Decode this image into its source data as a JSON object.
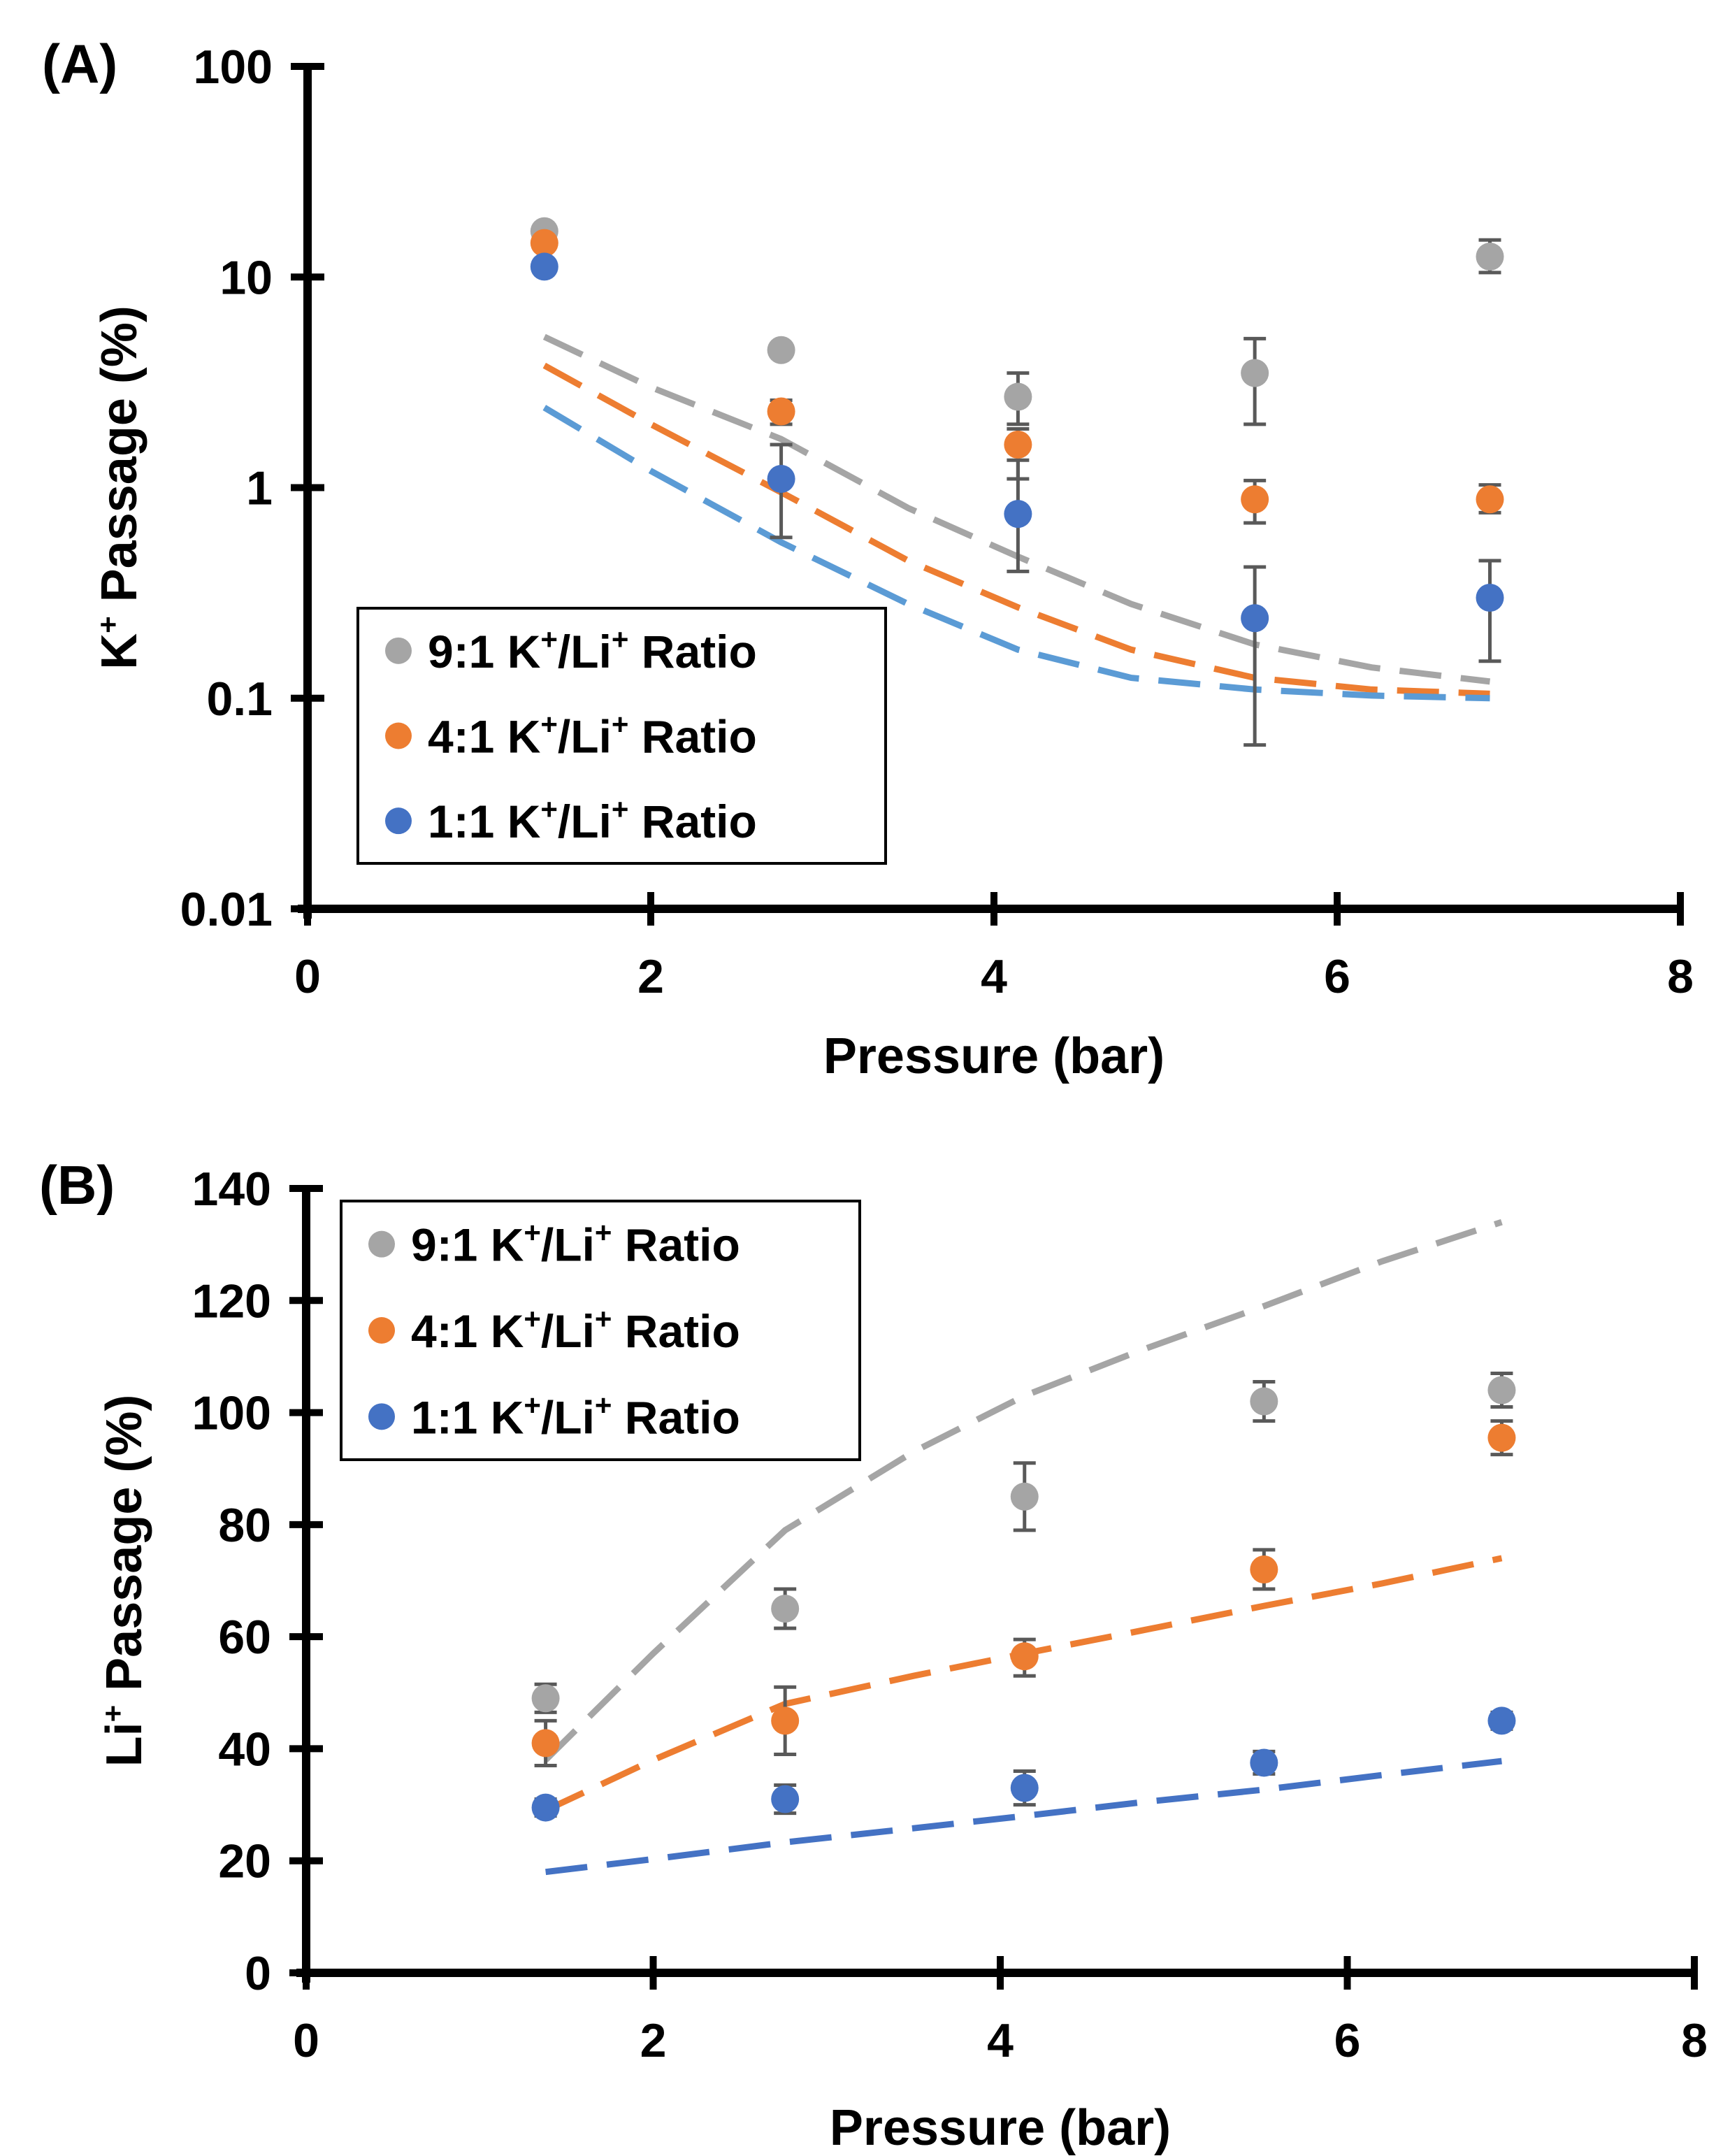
{
  "figure": {
    "background": "#ffffff"
  },
  "colors": {
    "gray": "#a5a5a5",
    "orange": "#ed7d31",
    "blue": "#4472c4",
    "light_blue": "#5b9bd5",
    "error_bar": "#595959",
    "axis": "#000000"
  },
  "chart_data": [
    {
      "id": "A",
      "panel_label": "(A)",
      "type": "scatter",
      "xlabel": "Pressure (bar)",
      "ylabel": {
        "main": "K",
        "sup": "+",
        "rest": " Passage (%)"
      },
      "xscale": "linear",
      "yscale": "log",
      "xlim": [
        0,
        8
      ],
      "ylim": [
        0.01,
        100
      ],
      "x_ticks": [
        0,
        2,
        4,
        6,
        8
      ],
      "x_tick_labels": [
        "0",
        "2",
        "4",
        "6",
        "8"
      ],
      "y_ticks": [
        0.01,
        0.1,
        1,
        10,
        100
      ],
      "y_tick_labels": [
        "0.01",
        "0.1",
        "1",
        "10",
        "100"
      ],
      "grid": false,
      "legend_position": "bottom-left",
      "series": [
        {
          "name": "9:1 K⁺/Li⁺ Ratio",
          "label": {
            "a": "9:1 K",
            "b": "/Li",
            "c": " Ratio"
          },
          "color": "#a5a5a5",
          "x": [
            1.38,
            2.76,
            4.14,
            5.52,
            6.89
          ],
          "y": [
            16.5,
            4.5,
            2.7,
            3.5,
            12.5
          ],
          "err_low": [
            0,
            0,
            0.7,
            1.5,
            2.0
          ],
          "err_high": [
            0,
            0,
            0.8,
            1.6,
            2.5
          ],
          "fit": {
            "x": [
              1.38,
              2.0,
              2.76,
              3.5,
              4.14,
              4.8,
              5.52,
              6.2,
              6.89
            ],
            "y": [
              5.2,
              3.0,
              1.7,
              0.8,
              0.47,
              0.28,
              0.18,
              0.14,
              0.12
            ],
            "color": "#a5a5a5"
          }
        },
        {
          "name": "4:1 K⁺/Li⁺ Ratio",
          "label": {
            "a": "4:1 K",
            "b": "/Li",
            "c": " Ratio"
          },
          "color": "#ed7d31",
          "x": [
            1.38,
            2.76,
            4.14,
            5.52,
            6.89
          ],
          "y": [
            14.5,
            2.3,
            1.6,
            0.88,
            0.88
          ],
          "err_low": [
            0,
            0.3,
            0.5,
            0.2,
            0.12
          ],
          "err_high": [
            0,
            0.3,
            0.3,
            0.2,
            0.15
          ],
          "fit": {
            "x": [
              1.38,
              2.0,
              2.76,
              3.5,
              4.14,
              4.8,
              5.52,
              6.2,
              6.89
            ],
            "y": [
              3.8,
              2.0,
              0.95,
              0.45,
              0.27,
              0.17,
              0.125,
              0.11,
              0.105
            ],
            "color": "#ed7d31"
          }
        },
        {
          "name": "1:1 K⁺/Li⁺ Ratio",
          "label": {
            "a": "1:1 K",
            "b": "/Li",
            "c": " Ratio"
          },
          "color": "#4472c4",
          "x": [
            1.38,
            2.76,
            4.14,
            5.52,
            6.89
          ],
          "y": [
            11.2,
            1.1,
            0.75,
            0.24,
            0.3
          ],
          "err_low": [
            0,
            0.52,
            0.35,
            0.18,
            0.15
          ],
          "err_high": [
            0,
            0.5,
            0.6,
            0.18,
            0.15
          ],
          "fit": {
            "x": [
              1.38,
              2.0,
              2.76,
              3.5,
              4.14,
              4.8,
              5.52,
              6.2,
              6.89
            ],
            "y": [
              2.4,
              1.2,
              0.55,
              0.28,
              0.17,
              0.125,
              0.11,
              0.103,
              0.1
            ],
            "color": "#5b9bd5"
          }
        }
      ]
    },
    {
      "id": "B",
      "panel_label": "(B)",
      "type": "scatter",
      "xlabel": "Pressure (bar)",
      "ylabel": {
        "main": "Li",
        "sup": "+",
        "rest": " Passage (%)"
      },
      "xscale": "linear",
      "yscale": "linear",
      "xlim": [
        0,
        8
      ],
      "ylim": [
        0,
        140
      ],
      "x_ticks": [
        0,
        2,
        4,
        6,
        8
      ],
      "x_tick_labels": [
        "0",
        "2",
        "4",
        "6",
        "8"
      ],
      "y_ticks": [
        0,
        20,
        40,
        60,
        80,
        100,
        120,
        140
      ],
      "y_tick_labels": [
        "0",
        "20",
        "40",
        "60",
        "80",
        "100",
        "120",
        "140"
      ],
      "grid": false,
      "legend_position": "top-left",
      "series": [
        {
          "name": "9:1 K⁺/Li⁺ Ratio",
          "label": {
            "a": "9:1 K",
            "b": "/Li",
            "c": " Ratio"
          },
          "color": "#a5a5a5",
          "x": [
            1.38,
            2.76,
            4.14,
            5.52,
            6.89
          ],
          "y": [
            49,
            65,
            85,
            102,
            104
          ],
          "err_low": [
            2.5,
            3.5,
            6.0,
            3.5,
            3.0
          ],
          "err_high": [
            2.5,
            3.5,
            6.0,
            3.5,
            3.0
          ],
          "fit": {
            "x": [
              1.38,
              2.0,
              2.76,
              3.5,
              4.14,
              4.8,
              5.52,
              6.2,
              6.89
            ],
            "y": [
              38,
              57,
              79,
              93,
              103,
              111,
              119,
              127,
              134
            ],
            "color": "#a5a5a5"
          }
        },
        {
          "name": "4:1 K⁺/Li⁺ Ratio",
          "label": {
            "a": "4:1 K",
            "b": "/Li",
            "c": " Ratio"
          },
          "color": "#ed7d31",
          "x": [
            1.38,
            2.76,
            4.14,
            5.52,
            6.89
          ],
          "y": [
            41,
            45,
            56.5,
            72,
            95.5
          ],
          "err_low": [
            4.0,
            6.0,
            3.5,
            3.5,
            3.0
          ],
          "err_high": [
            4.0,
            6.0,
            3.0,
            3.5,
            3.0
          ],
          "fit": {
            "x": [
              1.38,
              2.0,
              2.76,
              3.5,
              4.14,
              4.8,
              5.52,
              6.2,
              6.89
            ],
            "y": [
              29,
              38,
              48,
              53,
              57,
              61,
              65.5,
              69.5,
              74
            ],
            "color": "#ed7d31"
          }
        },
        {
          "name": "1:1 K⁺/Li⁺ Ratio",
          "label": {
            "a": "1:1 K",
            "b": "/Li",
            "c": " Ratio"
          },
          "color": "#4472c4",
          "x": [
            1.38,
            2.76,
            4.14,
            5.52,
            6.89
          ],
          "y": [
            29.5,
            31,
            33,
            37.5,
            45
          ],
          "err_low": [
            1.5,
            2.5,
            3.0,
            2.0,
            1.5
          ],
          "err_high": [
            1.5,
            2.5,
            3.0,
            2.0,
            1.5
          ],
          "fit": {
            "x": [
              1.38,
              2.0,
              2.76,
              3.5,
              4.14,
              4.8,
              5.52,
              6.2,
              6.89
            ],
            "y": [
              18,
              20.3,
              23.3,
              25.8,
              28,
              30.4,
              32.7,
              35.3,
              37.8
            ],
            "color": "#4472c4"
          }
        }
      ]
    }
  ]
}
